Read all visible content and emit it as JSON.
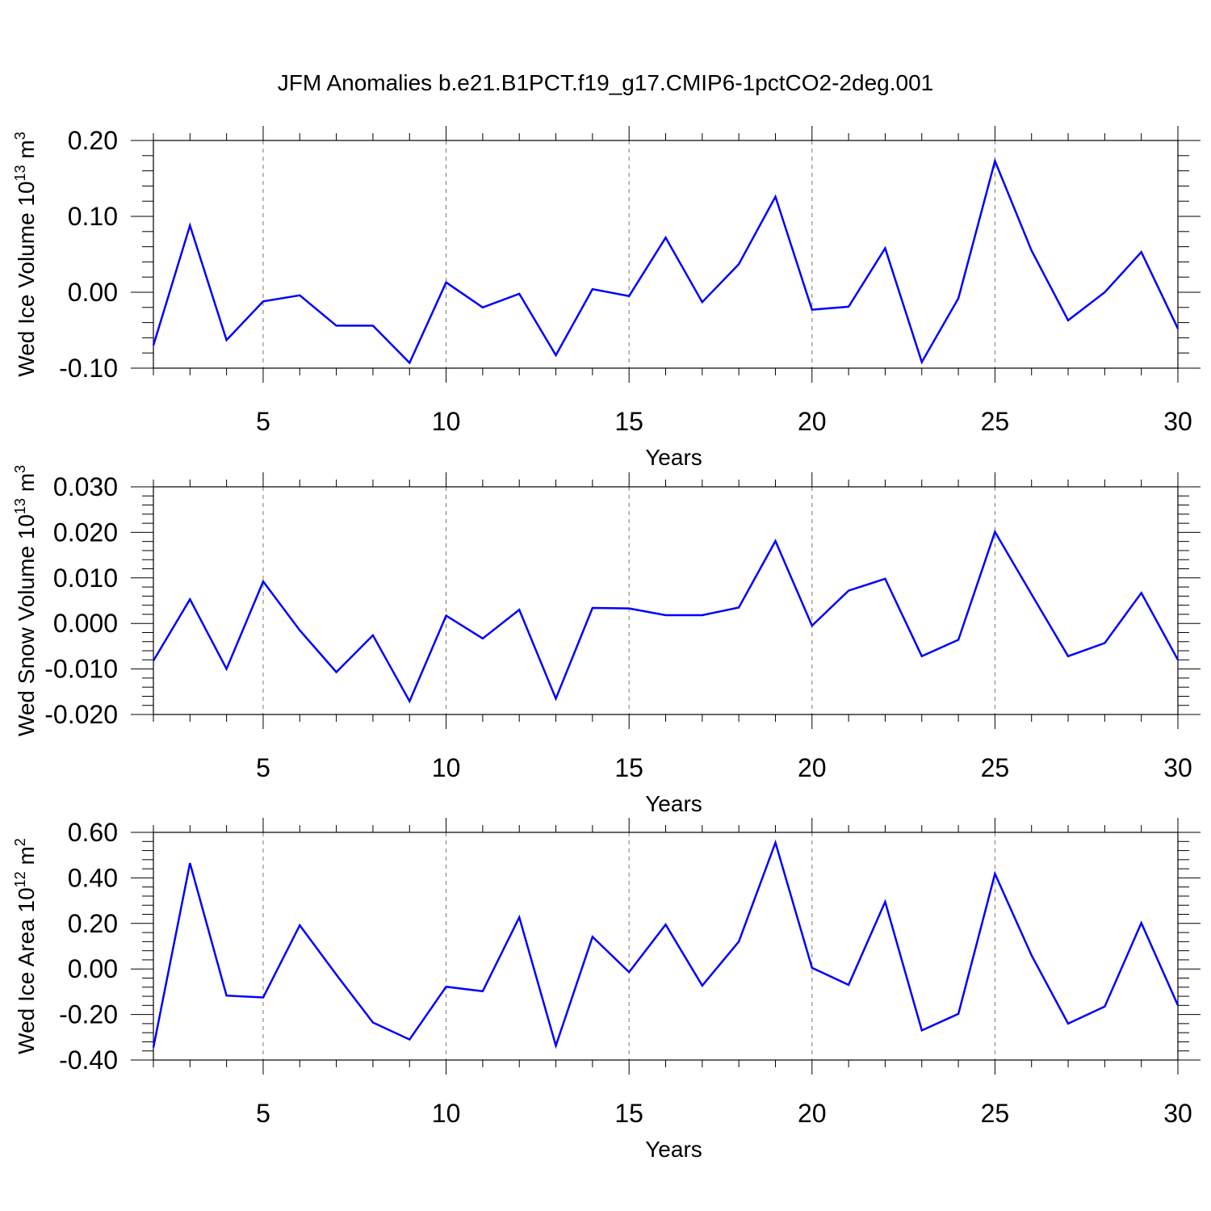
{
  "title": "JFM Anomalies b.e21.B1PCT.f19_g17.CMIP6-1pctCO2-2deg.001",
  "colors": {
    "line": "#0000ff",
    "axis": "#000000",
    "grid": "#777777"
  },
  "chart_data": [
    {
      "type": "line",
      "ylabel": {
        "main": "Wed Ice Volume 10",
        "exp": "13",
        "unit": " m",
        "unit_exp": "3"
      },
      "xlabel": "Years",
      "xlim": [
        2,
        30
      ],
      "ylim": [
        -0.1,
        0.2
      ],
      "xticks": [
        5,
        10,
        15,
        20,
        25,
        30
      ],
      "yticks": [
        "-0.10",
        "0.00",
        "0.10",
        "0.20"
      ],
      "ytick_values": [
        -0.1,
        0.0,
        0.1,
        0.2
      ],
      "grid_x": [
        5,
        10,
        15,
        20,
        25
      ],
      "series": [
        {
          "x": [
            2,
            3,
            4,
            5,
            6,
            7,
            8,
            9,
            10,
            11,
            12,
            13,
            14,
            15,
            16,
            17,
            18,
            19,
            20,
            21,
            22,
            23,
            24,
            25,
            26,
            27,
            28,
            29,
            30
          ],
          "values": [
            -0.07,
            0.088,
            -0.063,
            -0.012,
            -0.004,
            -0.044,
            -0.044,
            -0.093,
            0.013,
            -0.02,
            -0.002,
            -0.083,
            0.004,
            -0.005,
            0.072,
            -0.013,
            0.037,
            0.126,
            -0.023,
            -0.019,
            0.058,
            -0.092,
            -0.008,
            0.173,
            0.055,
            -0.037,
            0.0,
            0.053,
            -0.048
          ]
        }
      ]
    },
    {
      "type": "line",
      "ylabel": {
        "main": "Wed Snow Volume 10",
        "exp": "13",
        "unit": " m",
        "unit_exp": "3"
      },
      "xlabel": "Years",
      "xlim": [
        2,
        30
      ],
      "ylim": [
        -0.02,
        0.03
      ],
      "xticks": [
        5,
        10,
        15,
        20,
        25,
        30
      ],
      "yticks": [
        "-0.020",
        "-0.010",
        "0.000",
        "0.010",
        "0.020",
        "0.030"
      ],
      "ytick_values": [
        -0.02,
        -0.01,
        0.0,
        0.01,
        0.02,
        0.03
      ],
      "grid_x": [
        5,
        10,
        15,
        20,
        25
      ],
      "series": [
        {
          "x": [
            2,
            3,
            4,
            5,
            6,
            7,
            8,
            9,
            10,
            11,
            12,
            13,
            14,
            15,
            16,
            17,
            18,
            19,
            20,
            21,
            22,
            23,
            24,
            25,
            26,
            27,
            28,
            29,
            30
          ],
          "values": [
            -0.0082,
            0.0053,
            -0.01,
            0.0092,
            -0.0015,
            -0.0107,
            -0.0026,
            -0.0171,
            0.0017,
            -0.0033,
            0.003,
            -0.0165,
            0.0034,
            0.0033,
            0.0018,
            0.0018,
            0.0035,
            0.0181,
            -0.0005,
            0.0072,
            0.0098,
            -0.0072,
            -0.0036,
            0.0201,
            0.0064,
            -0.0072,
            -0.0043,
            0.0067,
            -0.008
          ]
        }
      ]
    },
    {
      "type": "line",
      "ylabel": {
        "main": "Wed Ice Area 10",
        "exp": "12",
        "unit": " m",
        "unit_exp": "2"
      },
      "xlabel": "Years",
      "xlim": [
        2,
        30
      ],
      "ylim": [
        -0.4,
        0.6
      ],
      "xticks": [
        5,
        10,
        15,
        20,
        25,
        30
      ],
      "yticks": [
        "-0.40",
        "-0.20",
        "0.00",
        "0.20",
        "0.40",
        "0.60"
      ],
      "ytick_values": [
        -0.4,
        -0.2,
        0.0,
        0.2,
        0.4,
        0.6
      ],
      "grid_x": [
        5,
        10,
        15,
        20,
        25
      ],
      "series": [
        {
          "x": [
            2,
            3,
            4,
            5,
            6,
            7,
            8,
            9,
            10,
            11,
            12,
            13,
            14,
            15,
            16,
            17,
            18,
            19,
            20,
            21,
            22,
            23,
            24,
            25,
            26,
            27,
            28,
            29,
            30
          ],
          "values": [
            -0.345,
            0.465,
            -0.117,
            -0.125,
            0.192,
            -0.025,
            -0.235,
            -0.31,
            -0.078,
            -0.098,
            0.227,
            -0.337,
            0.141,
            -0.014,
            0.195,
            -0.073,
            0.12,
            0.555,
            0.005,
            -0.07,
            0.295,
            -0.27,
            -0.197,
            0.418,
            0.06,
            -0.24,
            -0.165,
            0.202,
            -0.16
          ]
        }
      ]
    }
  ]
}
